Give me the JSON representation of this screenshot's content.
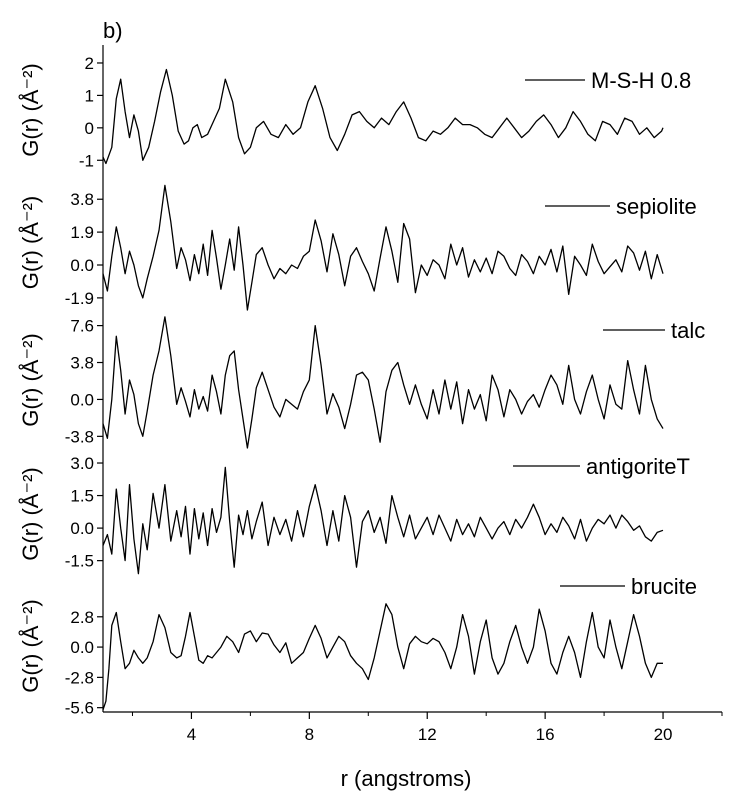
{
  "chart_data": {
    "type": "line",
    "panel_label": "b)",
    "xlabel": "r (angstroms)",
    "xlim": [
      1,
      22
    ],
    "x_ticks": [
      4,
      8,
      12,
      16,
      20
    ],
    "x_tick_labels": [
      "4",
      "8",
      "12",
      "16",
      "20"
    ],
    "grid": false,
    "legend_position": "top-right of each panel",
    "line_color": "#000000",
    "panels": [
      {
        "name": "M-S-H 0.8",
        "ylabel": "G(r) (Å⁻²)",
        "ylim": [
          -1.3,
          2.4
        ],
        "y_ticks": [
          -1,
          0,
          1,
          2
        ],
        "y_tick_labels": [
          "-1",
          "0",
          "1",
          "2"
        ],
        "x": [
          1.0,
          1.1,
          1.3,
          1.45,
          1.6,
          1.75,
          1.9,
          2.05,
          2.2,
          2.35,
          2.55,
          2.75,
          2.95,
          3.15,
          3.35,
          3.55,
          3.75,
          3.9,
          4.05,
          4.2,
          4.35,
          4.55,
          4.75,
          4.95,
          5.15,
          5.4,
          5.6,
          5.8,
          6.0,
          6.2,
          6.45,
          6.7,
          6.95,
          7.2,
          7.45,
          7.7,
          7.95,
          8.2,
          8.45,
          8.7,
          8.95,
          9.2,
          9.45,
          9.7,
          9.95,
          10.2,
          10.45,
          10.7,
          10.95,
          11.2,
          11.45,
          11.7,
          11.95,
          12.2,
          12.45,
          12.7,
          12.95,
          13.2,
          13.45,
          13.7,
          13.95,
          14.2,
          14.45,
          14.7,
          14.95,
          15.2,
          15.45,
          15.7,
          15.95,
          16.2,
          16.45,
          16.7,
          16.95,
          17.2,
          17.45,
          17.7,
          17.95,
          18.2,
          18.45,
          18.7,
          18.95,
          19.2,
          19.45,
          19.7,
          19.95,
          20.0
        ],
        "y": [
          -0.9,
          -1.1,
          -0.6,
          0.9,
          1.5,
          0.5,
          -0.3,
          0.4,
          -0.1,
          -1.0,
          -0.6,
          0.2,
          1.1,
          1.8,
          1.0,
          -0.1,
          -0.5,
          -0.4,
          0.0,
          0.1,
          -0.3,
          -0.2,
          0.2,
          0.6,
          1.5,
          0.8,
          -0.3,
          -0.8,
          -0.6,
          0.0,
          0.2,
          -0.2,
          -0.3,
          0.1,
          -0.2,
          0.0,
          0.8,
          1.3,
          0.6,
          -0.3,
          -0.7,
          -0.2,
          0.4,
          0.5,
          0.2,
          0.0,
          0.3,
          0.1,
          0.5,
          0.8,
          0.3,
          -0.3,
          -0.4,
          -0.1,
          -0.2,
          0.0,
          0.3,
          0.1,
          0.1,
          0.0,
          -0.2,
          -0.3,
          0.0,
          0.3,
          0.0,
          -0.3,
          -0.1,
          0.2,
          0.4,
          0.1,
          -0.3,
          0.0,
          0.5,
          0.2,
          -0.2,
          -0.4,
          0.2,
          0.1,
          -0.2,
          0.3,
          0.2,
          -0.2,
          0.0,
          -0.3,
          -0.1,
          0.0
        ]
      },
      {
        "name": "sepiolite",
        "ylabel": "G(r) (Å⁻²)",
        "ylim": [
          -2.6,
          5.2
        ],
        "y_ticks": [
          -1.9,
          0.0,
          1.9,
          3.8
        ],
        "y_tick_labels": [
          "-1.9",
          "0.0",
          "1.9",
          "3.8"
        ],
        "x": [
          1.0,
          1.15,
          1.3,
          1.45,
          1.6,
          1.75,
          1.9,
          2.05,
          2.2,
          2.35,
          2.5,
          2.7,
          2.9,
          3.1,
          3.3,
          3.5,
          3.65,
          3.8,
          3.95,
          4.1,
          4.25,
          4.4,
          4.55,
          4.7,
          4.85,
          5.0,
          5.15,
          5.3,
          5.45,
          5.6,
          5.75,
          5.9,
          6.05,
          6.2,
          6.4,
          6.6,
          6.8,
          7.0,
          7.2,
          7.4,
          7.6,
          7.8,
          8.0,
          8.2,
          8.4,
          8.6,
          8.8,
          9.0,
          9.2,
          9.4,
          9.6,
          9.8,
          10.0,
          10.2,
          10.4,
          10.6,
          10.8,
          11.0,
          11.2,
          11.4,
          11.6,
          11.8,
          12.0,
          12.2,
          12.4,
          12.6,
          12.8,
          13.0,
          13.2,
          13.4,
          13.6,
          13.8,
          14.0,
          14.2,
          14.4,
          14.6,
          14.8,
          15.0,
          15.2,
          15.4,
          15.6,
          15.8,
          16.0,
          16.2,
          16.4,
          16.6,
          16.8,
          17.0,
          17.2,
          17.4,
          17.6,
          17.8,
          18.0,
          18.2,
          18.4,
          18.6,
          18.8,
          19.0,
          19.2,
          19.4,
          19.6,
          19.8,
          20.0
        ],
        "y": [
          -0.5,
          -1.5,
          0.5,
          2.2,
          1.0,
          -0.5,
          0.8,
          0.0,
          -1.2,
          -1.9,
          -0.8,
          0.5,
          2.0,
          4.6,
          2.5,
          -0.2,
          1.0,
          0.3,
          -0.9,
          0.6,
          -0.5,
          1.2,
          -0.6,
          2.0,
          0.4,
          -1.4,
          0.0,
          1.5,
          -0.3,
          2.2,
          0.0,
          -2.6,
          -1.0,
          0.6,
          1.0,
          0.0,
          -0.8,
          -0.2,
          -0.5,
          0.0,
          -0.2,
          0.5,
          0.8,
          2.6,
          1.4,
          -0.4,
          1.8,
          0.6,
          -1.2,
          0.5,
          1.0,
          0.2,
          -0.5,
          -1.5,
          0.4,
          2.2,
          0.8,
          -1.0,
          2.4,
          1.5,
          -1.6,
          0.0,
          -0.6,
          0.3,
          0.0,
          -0.8,
          1.2,
          0.0,
          1.0,
          -0.7,
          0.3,
          -0.4,
          0.4,
          -0.5,
          0.8,
          0.5,
          -0.2,
          -0.6,
          0.6,
          0.2,
          -0.5,
          0.5,
          0.0,
          0.9,
          -0.4,
          1.1,
          -1.7,
          0.5,
          0.0,
          -0.6,
          1.2,
          0.2,
          -0.5,
          -0.1,
          0.3,
          -0.4,
          1.1,
          0.7,
          -0.3,
          0.8,
          -0.8,
          0.6,
          -0.5
        ]
      },
      {
        "name": "talc",
        "ylabel": "G(r) (Å⁻²)",
        "ylim": [
          -5.0,
          9.0
        ],
        "y_ticks": [
          -3.8,
          0.0,
          3.8,
          7.6
        ],
        "y_tick_labels": [
          "-3.8",
          "0.0",
          "3.8",
          "7.6"
        ],
        "x": [
          1.0,
          1.15,
          1.3,
          1.45,
          1.6,
          1.75,
          1.9,
          2.05,
          2.2,
          2.35,
          2.5,
          2.7,
          2.9,
          3.1,
          3.3,
          3.5,
          3.65,
          3.8,
          3.95,
          4.1,
          4.25,
          4.4,
          4.55,
          4.7,
          4.85,
          5.0,
          5.15,
          5.3,
          5.45,
          5.6,
          5.75,
          5.9,
          6.05,
          6.2,
          6.4,
          6.6,
          6.8,
          7.0,
          7.2,
          7.4,
          7.6,
          7.8,
          8.0,
          8.2,
          8.4,
          8.6,
          8.8,
          9.0,
          9.2,
          9.4,
          9.6,
          9.8,
          10.0,
          10.2,
          10.4,
          10.6,
          10.8,
          11.0,
          11.2,
          11.4,
          11.6,
          11.8,
          12.0,
          12.2,
          12.4,
          12.6,
          12.8,
          13.0,
          13.2,
          13.4,
          13.6,
          13.8,
          14.0,
          14.2,
          14.4,
          14.6,
          14.8,
          15.0,
          15.2,
          15.4,
          15.6,
          15.8,
          16.0,
          16.2,
          16.4,
          16.6,
          16.8,
          17.0,
          17.2,
          17.4,
          17.6,
          17.8,
          18.0,
          18.2,
          18.4,
          18.6,
          18.8,
          19.0,
          19.2,
          19.4,
          19.6,
          19.8,
          20.0
        ],
        "y": [
          -2.5,
          -4.0,
          0.0,
          6.5,
          3.0,
          -1.5,
          2.0,
          0.5,
          -2.5,
          -3.8,
          -1.2,
          2.5,
          5.0,
          8.5,
          4.5,
          -0.5,
          1.2,
          -0.2,
          -1.8,
          1.0,
          -1.0,
          0.3,
          -1.2,
          2.5,
          0.8,
          -1.5,
          2.5,
          4.5,
          5.0,
          1.0,
          -2.0,
          -5.0,
          -2.0,
          1.2,
          2.8,
          1.0,
          -0.8,
          -1.8,
          0.0,
          -0.5,
          -1.0,
          0.8,
          2.0,
          7.6,
          3.5,
          -1.5,
          0.6,
          -0.8,
          -3.0,
          -0.5,
          2.5,
          2.8,
          2.0,
          -1.0,
          -4.4,
          0.8,
          3.0,
          3.8,
          1.5,
          -0.5,
          1.5,
          -0.5,
          -2.0,
          1.0,
          -1.5,
          2.0,
          -1.0,
          1.8,
          -2.5,
          1.0,
          -1.0,
          0.5,
          -2.2,
          2.5,
          1.0,
          -1.8,
          1.0,
          0.0,
          -1.5,
          -0.2,
          0.5,
          -0.8,
          1.0,
          2.5,
          1.5,
          -0.5,
          3.5,
          0.0,
          -1.5,
          0.8,
          2.5,
          0.0,
          -2.0,
          1.5,
          -0.5,
          -1.0,
          4.0,
          1.0,
          -1.5,
          3.5,
          0.0,
          -2.0,
          -3.0
        ]
      },
      {
        "name": "antigoriteT",
        "ylabel": "G(r) (Å⁻²)",
        "ylim": [
          -2.3,
          3.6
        ],
        "y_ticks": [
          -1.5,
          0.0,
          1.5,
          3.0
        ],
        "y_tick_labels": [
          "-1.5",
          "0.0",
          "1.5",
          "3.0"
        ],
        "x": [
          1.0,
          1.15,
          1.3,
          1.45,
          1.6,
          1.75,
          1.9,
          2.05,
          2.2,
          2.35,
          2.5,
          2.7,
          2.9,
          3.1,
          3.3,
          3.5,
          3.65,
          3.8,
          3.95,
          4.1,
          4.25,
          4.4,
          4.55,
          4.7,
          4.85,
          5.0,
          5.15,
          5.3,
          5.45,
          5.6,
          5.75,
          5.9,
          6.05,
          6.2,
          6.4,
          6.6,
          6.8,
          7.0,
          7.2,
          7.4,
          7.6,
          7.8,
          8.0,
          8.2,
          8.4,
          8.6,
          8.8,
          9.0,
          9.2,
          9.4,
          9.6,
          9.8,
          10.0,
          10.2,
          10.4,
          10.6,
          10.8,
          11.0,
          11.2,
          11.4,
          11.6,
          11.8,
          12.0,
          12.2,
          12.4,
          12.6,
          12.8,
          13.0,
          13.2,
          13.4,
          13.6,
          13.8,
          14.0,
          14.2,
          14.4,
          14.6,
          14.8,
          15.0,
          15.2,
          15.4,
          15.6,
          15.8,
          16.0,
          16.2,
          16.4,
          16.6,
          16.8,
          17.0,
          17.2,
          17.4,
          17.6,
          17.8,
          18.0,
          18.2,
          18.4,
          18.6,
          18.8,
          19.0,
          19.2,
          19.4,
          19.6,
          19.8,
          20.0
        ],
        "y": [
          -0.8,
          -0.3,
          -1.2,
          1.8,
          0.0,
          -1.5,
          2.0,
          -0.5,
          -2.1,
          0.2,
          -1.0,
          1.6,
          0.0,
          2.0,
          -0.6,
          0.8,
          -0.4,
          1.0,
          -1.2,
          0.9,
          -0.5,
          0.7,
          -0.8,
          0.9,
          -0.2,
          0.5,
          2.8,
          0.3,
          -1.8,
          0.6,
          -0.3,
          0.8,
          -0.5,
          0.3,
          1.2,
          -0.8,
          0.5,
          -0.3,
          0.4,
          -0.6,
          0.8,
          -0.4,
          1.0,
          2.0,
          0.8,
          -0.8,
          0.8,
          -0.6,
          1.5,
          0.5,
          -1.8,
          0.3,
          0.8,
          -0.2,
          0.5,
          -0.7,
          1.5,
          0.5,
          -0.4,
          0.6,
          -0.5,
          0.0,
          0.5,
          -0.3,
          0.6,
          0.0,
          -0.6,
          0.4,
          -0.3,
          0.2,
          -0.4,
          0.5,
          0.0,
          -0.5,
          0.0,
          0.3,
          -0.3,
          0.4,
          0.0,
          0.5,
          1.1,
          0.5,
          -0.3,
          0.2,
          -0.2,
          0.5,
          0.1,
          -0.5,
          0.4,
          -0.6,
          0.0,
          0.4,
          0.2,
          0.6,
          0.0,
          0.6,
          0.3,
          -0.1,
          0.1,
          -0.4,
          -0.6,
          -0.2,
          -0.1
        ]
      },
      {
        "name": "brucite",
        "ylabel": "G(r) (Å⁻²)",
        "ylim": [
          -6.0,
          6.2
        ],
        "y_ticks": [
          -5.6,
          -2.8,
          0.0,
          2.8
        ],
        "y_tick_labels": [
          "-5.6",
          "-2.8",
          "0.0",
          "2.8"
        ],
        "x": [
          1.0,
          1.1,
          1.2,
          1.3,
          1.45,
          1.6,
          1.75,
          1.9,
          2.05,
          2.2,
          2.35,
          2.5,
          2.7,
          2.9,
          3.1,
          3.3,
          3.5,
          3.65,
          3.8,
          3.95,
          4.1,
          4.25,
          4.4,
          4.55,
          4.7,
          4.85,
          5.0,
          5.2,
          5.4,
          5.6,
          5.8,
          6.0,
          6.2,
          6.4,
          6.6,
          6.8,
          7.0,
          7.2,
          7.4,
          7.6,
          7.8,
          8.0,
          8.2,
          8.4,
          8.6,
          8.8,
          9.0,
          9.2,
          9.4,
          9.6,
          9.8,
          10.0,
          10.2,
          10.4,
          10.6,
          10.8,
          11.0,
          11.2,
          11.4,
          11.6,
          11.8,
          12.0,
          12.2,
          12.4,
          12.6,
          12.8,
          13.0,
          13.2,
          13.4,
          13.6,
          13.8,
          14.0,
          14.2,
          14.4,
          14.6,
          14.8,
          15.0,
          15.2,
          15.4,
          15.6,
          15.8,
          16.0,
          16.2,
          16.4,
          16.6,
          16.8,
          17.0,
          17.2,
          17.4,
          17.6,
          17.8,
          18.0,
          18.2,
          18.4,
          18.6,
          18.8,
          19.0,
          19.2,
          19.4,
          19.6,
          19.8,
          20.0
        ],
        "y": [
          -5.8,
          -5.0,
          -2.0,
          2.0,
          3.2,
          0.5,
          -2.0,
          -1.5,
          -0.3,
          -1.0,
          -1.5,
          -1.0,
          0.5,
          3.0,
          1.8,
          -0.5,
          -1.0,
          -0.8,
          1.0,
          3.2,
          1.0,
          -1.2,
          -1.5,
          -0.8,
          -1.0,
          -0.5,
          0.0,
          1.0,
          0.5,
          -0.5,
          1.2,
          1.5,
          0.5,
          1.3,
          1.2,
          0.2,
          -0.5,
          0.4,
          -1.5,
          -1.0,
          -0.5,
          0.8,
          2.0,
          0.8,
          -1.0,
          0.0,
          1.0,
          0.5,
          -0.8,
          -1.5,
          -2.0,
          -3.0,
          -1.0,
          1.5,
          4.0,
          3.0,
          0.0,
          -2.0,
          0.3,
          1.0,
          0.5,
          0.3,
          0.8,
          0.5,
          -0.5,
          -2.0,
          0.0,
          3.0,
          1.0,
          -2.5,
          0.5,
          2.5,
          -1.0,
          -2.5,
          -1.5,
          0.5,
          2.0,
          0.0,
          -1.5,
          0.0,
          3.5,
          1.5,
          -1.5,
          -2.5,
          -0.5,
          1.0,
          -0.5,
          -2.8,
          0.5,
          3.2,
          0.0,
          -1.0,
          2.5,
          0.0,
          -2.0,
          0.5,
          3.0,
          1.0,
          -1.5,
          -2.8,
          -1.5,
          -1.5
        ]
      }
    ]
  }
}
